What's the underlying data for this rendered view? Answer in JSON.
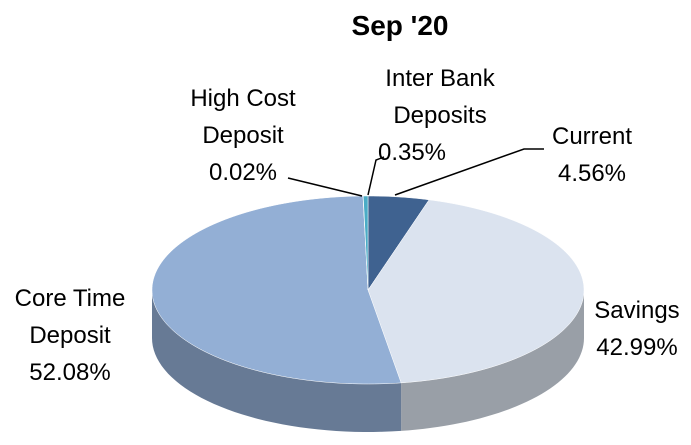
{
  "chart_data": {
    "type": "pie",
    "title": "Sep '20",
    "categories": [
      "Current",
      "Savings",
      "Core Time Deposit",
      "High Cost Deposit",
      "Inter Bank Deposits"
    ],
    "values": [
      4.56,
      42.99,
      52.08,
      0.02,
      0.35
    ],
    "value_labels": [
      "4.56%",
      "42.99%",
      "52.08%",
      "0.02%",
      "0.35%"
    ],
    "colors": [
      "#3f6290",
      "#dbe3ef",
      "#93afd5",
      "#5b9bd5",
      "#4bacc6"
    ]
  }
}
